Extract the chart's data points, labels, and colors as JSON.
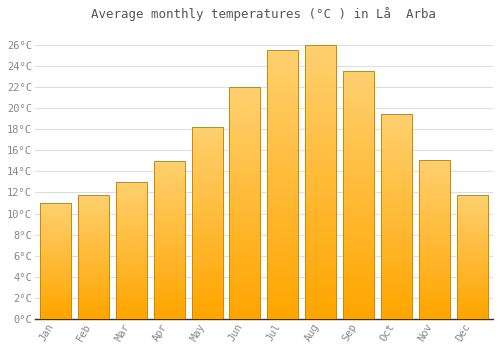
{
  "title": "Average monthly temperatures (°C ) in Lå  Arba",
  "months": [
    "Jan",
    "Feb",
    "Mar",
    "Apr",
    "May",
    "Jun",
    "Jul",
    "Aug",
    "Sep",
    "Oct",
    "Nov",
    "Dec"
  ],
  "temperatures": [
    11.0,
    11.8,
    13.0,
    15.0,
    18.2,
    22.0,
    25.5,
    26.0,
    23.5,
    19.4,
    15.1,
    11.8
  ],
  "bar_color_bottom": "#FFA500",
  "bar_color_top": "#FFD070",
  "bar_edge_color": "#CC8800",
  "background_color": "#FFFFFF",
  "grid_color": "#DDDDDD",
  "tick_label_color": "#888888",
  "title_color": "#555555",
  "ylim": [
    0,
    27.5
  ],
  "yticks": [
    0,
    2,
    4,
    6,
    8,
    10,
    12,
    14,
    16,
    18,
    20,
    22,
    24,
    26
  ]
}
